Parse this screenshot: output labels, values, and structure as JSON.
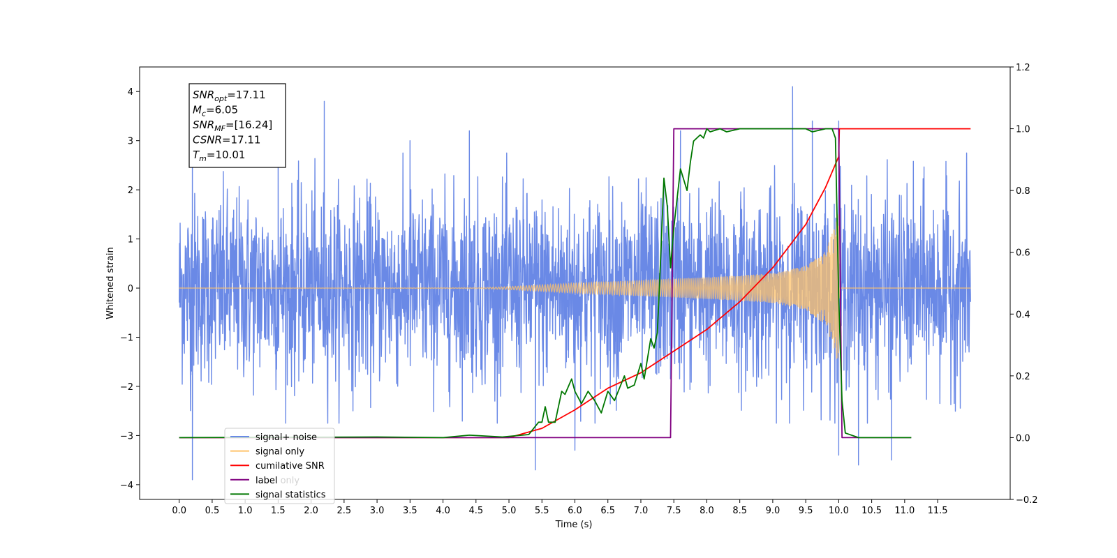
{
  "chart_data": {
    "type": "line",
    "xlabel": "Time (s)",
    "ylabel": "Whitened strain",
    "xlim": [
      -0.6,
      12.6
    ],
    "ylim": [
      -4.3,
      4.5
    ],
    "y2lim": [
      -0.2,
      1.2
    ],
    "grid": false,
    "x_ticks": [
      "0.0",
      "0.5",
      "1.0",
      "1.5",
      "2.0",
      "2.5",
      "3.0",
      "3.5",
      "4.0",
      "4.5",
      "5.0",
      "5.5",
      "6.0",
      "6.5",
      "7.0",
      "7.5",
      "8.0",
      "8.5",
      "9.0",
      "9.5",
      "10.0",
      "10.5",
      "11.0",
      "11.5"
    ],
    "y_ticks": [
      "4",
      "3",
      "2",
      "1",
      "0",
      "−1",
      "−2",
      "−3",
      "−4"
    ],
    "y2_ticks": [
      "1.2",
      "1.0",
      "0.8",
      "0.6",
      "0.4",
      "0.2",
      "0.0",
      "−0.2"
    ],
    "info_box": [
      {
        "symbol": "SNR",
        "sub": "opt",
        "value": "=17.11"
      },
      {
        "symbol": "M",
        "sub": "c",
        "value": "=6.05"
      },
      {
        "symbol": "SNR",
        "sub": "MF",
        "value": "=[16.24]"
      },
      {
        "symbol": "CSNR",
        "sub": "",
        "value": "=17.11"
      },
      {
        "symbol": "T",
        "sub": "m",
        "value": "=10.01"
      }
    ],
    "legend": {
      "placement": "bottom-left",
      "entries": [
        {
          "label": "signal+ noise",
          "color": "#6a89e6"
        },
        {
          "label": "signal only",
          "color": "#ffc36b"
        },
        {
          "label": "cumilative SNR",
          "color": "#ff0000"
        },
        {
          "label": "label",
          "color": "#800080"
        },
        {
          "label": "signal statistics",
          "color": "#007700"
        }
      ],
      "ghost_text": "label only"
    },
    "series": [
      {
        "name": "signal+ noise",
        "axis": "left",
        "color": "#6a89e6",
        "x_range": [
          0.0,
          12.0
        ],
        "noise_std": 0.95,
        "peak_highs": [
          [
            0.2,
            2.8
          ],
          [
            1.5,
            3.0
          ],
          [
            2.2,
            3.8
          ],
          [
            3.5,
            3.0
          ],
          [
            4.4,
            3.2
          ],
          [
            7.6,
            3.2
          ],
          [
            9.3,
            4.1
          ],
          [
            9.6,
            3.4
          ],
          [
            10.0,
            3.4
          ]
        ],
        "peak_lows": [
          [
            0.2,
            -3.9
          ],
          [
            5.4,
            -3.7
          ],
          [
            6.0,
            -3.3
          ],
          [
            10.0,
            -3.4
          ],
          [
            10.3,
            -3.6
          ],
          [
            10.8,
            -3.5
          ]
        ]
      },
      {
        "name": "signal only",
        "axis": "left",
        "color": "#ffc36b",
        "envelope": [
          [
            0.0,
            0.0
          ],
          [
            4.5,
            0.005
          ],
          [
            5.0,
            0.03
          ],
          [
            6.0,
            0.1
          ],
          [
            7.0,
            0.16
          ],
          [
            8.0,
            0.22
          ],
          [
            9.0,
            0.3
          ],
          [
            9.5,
            0.45
          ],
          [
            9.8,
            0.75
          ],
          [
            9.95,
            1.3
          ],
          [
            10.0,
            1.7
          ],
          [
            10.01,
            0.0
          ],
          [
            12.0,
            0.0
          ]
        ]
      },
      {
        "name": "cumilative SNR",
        "axis": "right",
        "color": "#ff0000",
        "points": [
          [
            0.0,
            0.0
          ],
          [
            5.0,
            0.0
          ],
          [
            5.5,
            0.03
          ],
          [
            6.0,
            0.09
          ],
          [
            6.5,
            0.16
          ],
          [
            7.0,
            0.21
          ],
          [
            7.5,
            0.28
          ],
          [
            8.0,
            0.35
          ],
          [
            8.5,
            0.44
          ],
          [
            9.0,
            0.55
          ],
          [
            9.5,
            0.69
          ],
          [
            9.8,
            0.81
          ],
          [
            10.0,
            0.91
          ],
          [
            10.01,
            1.0
          ],
          [
            12.0,
            1.0
          ]
        ]
      },
      {
        "name": "label",
        "axis": "right",
        "color": "#800080",
        "points": [
          [
            0.0,
            0.0
          ],
          [
            7.45,
            0.0
          ],
          [
            7.5,
            1.0
          ],
          [
            10.0,
            1.0
          ],
          [
            10.05,
            0.0
          ],
          [
            11.1,
            0.0
          ]
        ]
      },
      {
        "name": "signal statistics",
        "axis": "right",
        "color": "#007700",
        "points": [
          [
            0.0,
            0.0
          ],
          [
            3.0,
            0.002
          ],
          [
            4.0,
            0.0
          ],
          [
            4.4,
            0.008
          ],
          [
            4.9,
            0.002
          ],
          [
            5.3,
            0.01
          ],
          [
            5.45,
            0.05
          ],
          [
            5.5,
            0.05
          ],
          [
            5.55,
            0.1
          ],
          [
            5.6,
            0.05
          ],
          [
            5.7,
            0.05
          ],
          [
            5.8,
            0.15
          ],
          [
            5.85,
            0.14
          ],
          [
            5.95,
            0.19
          ],
          [
            6.0,
            0.15
          ],
          [
            6.1,
            0.11
          ],
          [
            6.2,
            0.15
          ],
          [
            6.3,
            0.12
          ],
          [
            6.4,
            0.08
          ],
          [
            6.5,
            0.15
          ],
          [
            6.6,
            0.12
          ],
          [
            6.75,
            0.2
          ],
          [
            6.8,
            0.16
          ],
          [
            6.9,
            0.17
          ],
          [
            7.0,
            0.24
          ],
          [
            7.05,
            0.19
          ],
          [
            7.15,
            0.32
          ],
          [
            7.2,
            0.29
          ],
          [
            7.25,
            0.34
          ],
          [
            7.3,
            0.58
          ],
          [
            7.35,
            0.84
          ],
          [
            7.4,
            0.75
          ],
          [
            7.45,
            0.55
          ],
          [
            7.5,
            0.68
          ],
          [
            7.6,
            0.87
          ],
          [
            7.7,
            0.8
          ],
          [
            7.75,
            0.89
          ],
          [
            7.8,
            0.96
          ],
          [
            7.9,
            0.98
          ],
          [
            7.95,
            0.97
          ],
          [
            8.0,
            1.0
          ],
          [
            8.05,
            0.99
          ],
          [
            8.2,
            1.0
          ],
          [
            8.3,
            0.99
          ],
          [
            8.5,
            1.0
          ],
          [
            9.0,
            1.0
          ],
          [
            9.5,
            1.0
          ],
          [
            9.6,
            0.99
          ],
          [
            9.8,
            1.0
          ],
          [
            9.9,
            1.0
          ],
          [
            9.95,
            0.97
          ],
          [
            10.0,
            0.45
          ],
          [
            10.05,
            0.12
          ],
          [
            10.1,
            0.015
          ],
          [
            10.3,
            0.0
          ],
          [
            11.1,
            0.0
          ]
        ]
      }
    ]
  }
}
